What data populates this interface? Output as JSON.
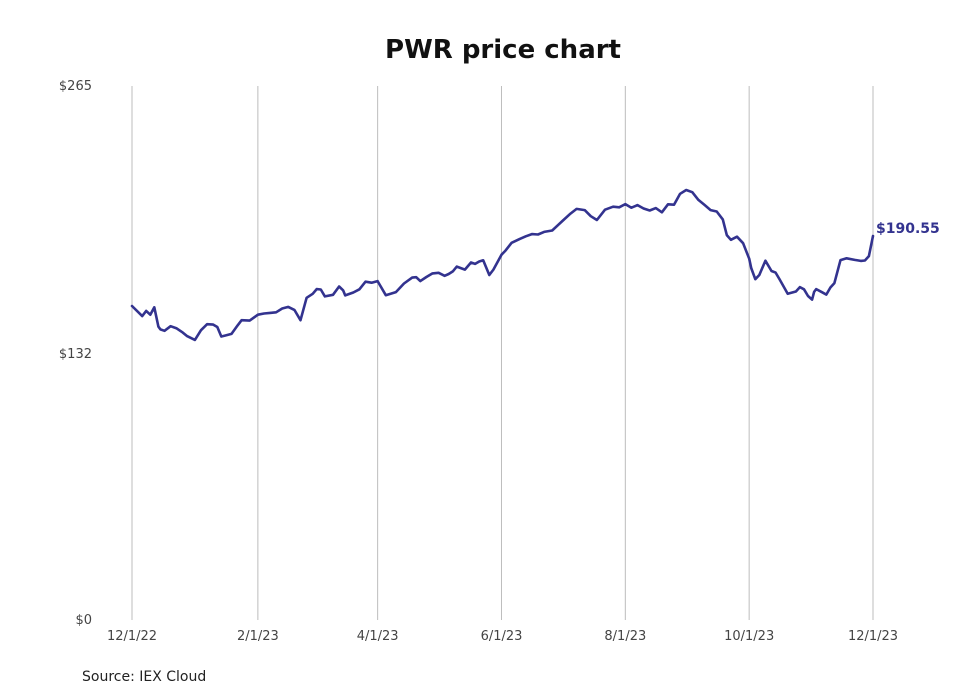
{
  "colors": {
    "line": "#33338f",
    "grid": "#bdbdbd",
    "background": "#ffffff"
  },
  "source": "Source: IEX Cloud",
  "chart_data": {
    "type": "line",
    "title": "PWR price chart",
    "xlabel": "",
    "ylabel": "",
    "ylim": [
      0,
      265
    ],
    "yticks": [
      0,
      132,
      265
    ],
    "ytick_labels": [
      "$0",
      "$132",
      "$265"
    ],
    "xticks": [
      "2022-12-01",
      "2023-02-01",
      "2023-04-01",
      "2023-06-01",
      "2023-08-01",
      "2023-10-01",
      "2023-12-01"
    ],
    "xtick_labels": [
      "12/1/22",
      "2/1/23",
      "4/1/23",
      "6/1/23",
      "8/1/23",
      "10/1/23",
      "12/1/23"
    ],
    "xlim": [
      "2022-12-01",
      "2023-12-01"
    ],
    "grid": "vertical",
    "end_label": "$190.55",
    "series": [
      {
        "x": [
          "2022-12-01",
          "2022-12-06",
          "2022-12-08",
          "2022-12-10",
          "2022-12-12",
          "2022-12-14",
          "2022-12-15",
          "2022-12-17",
          "2022-12-20",
          "2022-12-23",
          "2022-12-26",
          "2022-12-28",
          "2023-01-01",
          "2023-01-04",
          "2023-01-07",
          "2023-01-10",
          "2023-01-12",
          "2023-01-14",
          "2023-01-16",
          "2023-01-19",
          "2023-01-22",
          "2023-01-24",
          "2023-01-28",
          "2023-02-01",
          "2023-02-04",
          "2023-02-07",
          "2023-02-10",
          "2023-02-13",
          "2023-02-16",
          "2023-02-19",
          "2023-02-22",
          "2023-02-25",
          "2023-02-28",
          "2023-03-02",
          "2023-03-04",
          "2023-03-06",
          "2023-03-10",
          "2023-03-13",
          "2023-03-15",
          "2023-03-16",
          "2023-03-20",
          "2023-03-23",
          "2023-03-26",
          "2023-03-29",
          "2023-04-01",
          "2023-04-05",
          "2023-04-10",
          "2023-04-14",
          "2023-04-18",
          "2023-04-20",
          "2023-04-22",
          "2023-04-25",
          "2023-04-28",
          "2023-05-01",
          "2023-05-04",
          "2023-05-06",
          "2023-05-08",
          "2023-05-10",
          "2023-05-14",
          "2023-05-17",
          "2023-05-19",
          "2023-05-21",
          "2023-05-23",
          "2023-05-26",
          "2023-05-28",
          "2023-06-01",
          "2023-06-03",
          "2023-06-06",
          "2023-06-10",
          "2023-06-13",
          "2023-06-16",
          "2023-06-19",
          "2023-06-22",
          "2023-06-26",
          "2023-06-29",
          "2023-07-01",
          "2023-07-05",
          "2023-07-08",
          "2023-07-12",
          "2023-07-15",
          "2023-07-18",
          "2023-07-22",
          "2023-07-26",
          "2023-07-29",
          "2023-08-01",
          "2023-08-04",
          "2023-08-07",
          "2023-08-10",
          "2023-08-13",
          "2023-08-16",
          "2023-08-19",
          "2023-08-22",
          "2023-08-25",
          "2023-08-28",
          "2023-08-31",
          "2023-09-03",
          "2023-09-06",
          "2023-09-09",
          "2023-09-12",
          "2023-09-15",
          "2023-09-18",
          "2023-09-20",
          "2023-09-22",
          "2023-09-25",
          "2023-09-28",
          "2023-10-01",
          "2023-10-02",
          "2023-10-04",
          "2023-10-06",
          "2023-10-09",
          "2023-10-12",
          "2023-10-14",
          "2023-10-16",
          "2023-10-20",
          "2023-10-24",
          "2023-10-26",
          "2023-10-28",
          "2023-10-30",
          "2023-11-01",
          "2023-11-02",
          "2023-11-03",
          "2023-11-06",
          "2023-11-08",
          "2023-11-10",
          "2023-11-12",
          "2023-11-15",
          "2023-11-18",
          "2023-11-22",
          "2023-11-25",
          "2023-11-27",
          "2023-11-29",
          "2023-12-01"
        ],
        "values": [
          155.8,
          150.8,
          153.4,
          151.5,
          155.2,
          145.6,
          144.2,
          143.5,
          145.8,
          144.7,
          142.6,
          141.0,
          139.0,
          143.8,
          146.8,
          146.6,
          145.4,
          140.7,
          141.2,
          142.0,
          146.2,
          148.8,
          148.6,
          151.5,
          152.1,
          152.4,
          152.7,
          154.6,
          155.4,
          153.9,
          148.8,
          159.9,
          161.9,
          164.2,
          164.0,
          160.6,
          161.4,
          165.5,
          163.6,
          161.1,
          162.5,
          164.1,
          167.9,
          167.4,
          168.2,
          161.2,
          162.7,
          167.0,
          169.9,
          170.1,
          168.2,
          170.2,
          172.0,
          172.3,
          170.8,
          171.7,
          173.0,
          175.4,
          173.9,
          177.4,
          176.7,
          177.9,
          178.5,
          171.2,
          173.9,
          181.3,
          183.3,
          187.2,
          189.1,
          190.4,
          191.5,
          191.3,
          192.6,
          193.3,
          196.1,
          198.0,
          201.7,
          204.0,
          203.4,
          200.4,
          198.5,
          203.6,
          205.1,
          204.8,
          206.4,
          204.6,
          205.9,
          204.2,
          203.2,
          204.4,
          202.3,
          206.3,
          206.1,
          211.5,
          213.4,
          212.3,
          208.5,
          206.0,
          203.4,
          202.7,
          198.8,
          191.0,
          188.7,
          190.2,
          187.0,
          179.3,
          174.7,
          169.1,
          171.2,
          178.3,
          173.2,
          172.4,
          169.0,
          161.9,
          163.0,
          165.2,
          164.1,
          160.8,
          159.0,
          162.8,
          164.2,
          162.6,
          161.5,
          165.0,
          167.2,
          178.6,
          179.5,
          178.7,
          178.2,
          178.4,
          180.6,
          190.55
        ]
      }
    ]
  }
}
